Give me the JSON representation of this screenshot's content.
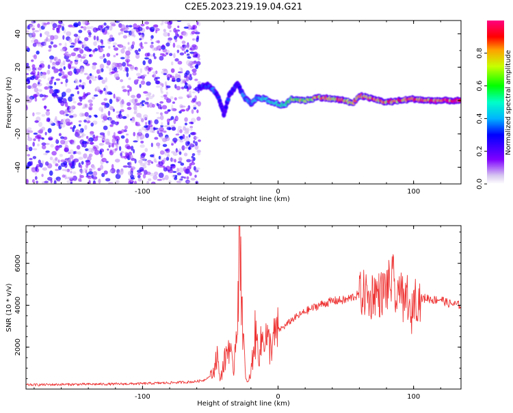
{
  "title": "C2E5.2023.219.19.04.G21",
  "colors": {
    "snr_line": "#ee3333",
    "axis": "#000000",
    "background": "#ffffff"
  },
  "chart_data": [
    {
      "type": "heatmap",
      "name": "spectrogram",
      "xlabel": "Height of straight line (km)",
      "ylabel": "Frequency (Hz)",
      "xlim": [
        -186,
        135
      ],
      "ylim": [
        -50,
        48
      ],
      "x_ticks": [
        -100,
        0,
        100
      ],
      "x_tick_labels": [
        "-100",
        "0",
        "100"
      ],
      "y_ticks": [
        -40,
        -20,
        0,
        20,
        40
      ],
      "y_tick_labels": [
        "-40",
        "-20",
        "0",
        "20",
        "40"
      ],
      "colorbar": {
        "label": "Normalized spectral amplitude",
        "range": [
          0,
          1
        ],
        "ticks": [
          0.0,
          0.2,
          0.4,
          0.6,
          0.8
        ],
        "tick_labels": [
          "0.0",
          "0.2",
          "0.4",
          "0.6",
          "0.8"
        ]
      },
      "noise_region": {
        "x_range": [
          -186,
          -58
        ],
        "y_range": [
          -50,
          48
        ],
        "amplitude_range": [
          0.05,
          0.3
        ]
      },
      "signal_track": [
        {
          "x": -58,
          "y": 8,
          "amp": 0.3
        },
        {
          "x": -52,
          "y": 9,
          "amp": 0.35
        },
        {
          "x": -47,
          "y": 6,
          "amp": 0.4
        },
        {
          "x": -43,
          "y": 0,
          "amp": 0.3
        },
        {
          "x": -40,
          "y": -8,
          "amp": 0.25
        },
        {
          "x": -36,
          "y": 3,
          "amp": 0.35
        },
        {
          "x": -30,
          "y": 10,
          "amp": 0.3
        },
        {
          "x": -25,
          "y": 2,
          "amp": 0.4
        },
        {
          "x": -20,
          "y": -2,
          "amp": 0.45
        },
        {
          "x": -15,
          "y": 2,
          "amp": 0.45
        },
        {
          "x": -10,
          "y": 1,
          "amp": 0.5
        },
        {
          "x": -5,
          "y": -1,
          "amp": 0.55
        },
        {
          "x": 0,
          "y": -2,
          "amp": 0.6
        },
        {
          "x": 5,
          "y": -3,
          "amp": 0.6
        },
        {
          "x": 10,
          "y": 1,
          "amp": 0.7
        },
        {
          "x": 20,
          "y": 0,
          "amp": 0.8
        },
        {
          "x": 30,
          "y": 2,
          "amp": 0.85
        },
        {
          "x": 40,
          "y": 1,
          "amp": 0.9
        },
        {
          "x": 50,
          "y": 0,
          "amp": 0.9
        },
        {
          "x": 55,
          "y": -2,
          "amp": 0.8
        },
        {
          "x": 60,
          "y": 3,
          "amp": 0.9
        },
        {
          "x": 70,
          "y": 1,
          "amp": 0.95
        },
        {
          "x": 80,
          "y": -1,
          "amp": 0.9
        },
        {
          "x": 90,
          "y": 0,
          "amp": 0.95
        },
        {
          "x": 100,
          "y": 1,
          "amp": 0.95
        },
        {
          "x": 110,
          "y": 0,
          "amp": 0.95
        },
        {
          "x": 120,
          "y": 0,
          "amp": 0.95
        },
        {
          "x": 135,
          "y": 0,
          "amp": 0.95
        }
      ]
    },
    {
      "type": "line",
      "name": "snr",
      "xlabel": "Height of straight line (km)",
      "ylabel": "SNR (10 * v/v)",
      "xlim": [
        -186,
        135
      ],
      "ylim": [
        0,
        7800
      ],
      "x_ticks": [
        -100,
        0,
        100
      ],
      "x_tick_labels": [
        "-100",
        "0",
        "100"
      ],
      "y_ticks": [
        2000,
        4000,
        6000
      ],
      "y_tick_labels": [
        "2000",
        "4000",
        "6000"
      ],
      "x": [
        -186,
        -160,
        -140,
        -120,
        -100,
        -80,
        -62,
        -55,
        -48,
        -45,
        -43,
        -40,
        -36,
        -33,
        -30,
        -28,
        -26,
        -24,
        -22,
        -20,
        -17,
        -14,
        -10,
        -6,
        0,
        5,
        10,
        15,
        20,
        25,
        30,
        40,
        50,
        55,
        60,
        65,
        68,
        70,
        75,
        80,
        85,
        88,
        90,
        93,
        95,
        98,
        100,
        102,
        105,
        110,
        115,
        120,
        125,
        130,
        135
      ],
      "y": [
        200,
        220,
        230,
        240,
        260,
        300,
        350,
        420,
        700,
        1700,
        400,
        1200,
        2200,
        700,
        3800,
        7600,
        3000,
        500,
        300,
        800,
        2600,
        1800,
        2700,
        2000,
        2800,
        3000,
        3300,
        3500,
        3700,
        3850,
        4000,
        4200,
        4250,
        4400,
        4500,
        4600,
        4100,
        4700,
        4500,
        4800,
        5200,
        3800,
        5600,
        3600,
        4800,
        3000,
        4500,
        4300,
        4300,
        4350,
        4250,
        4300,
        4100,
        4050,
        4000
      ]
    }
  ]
}
